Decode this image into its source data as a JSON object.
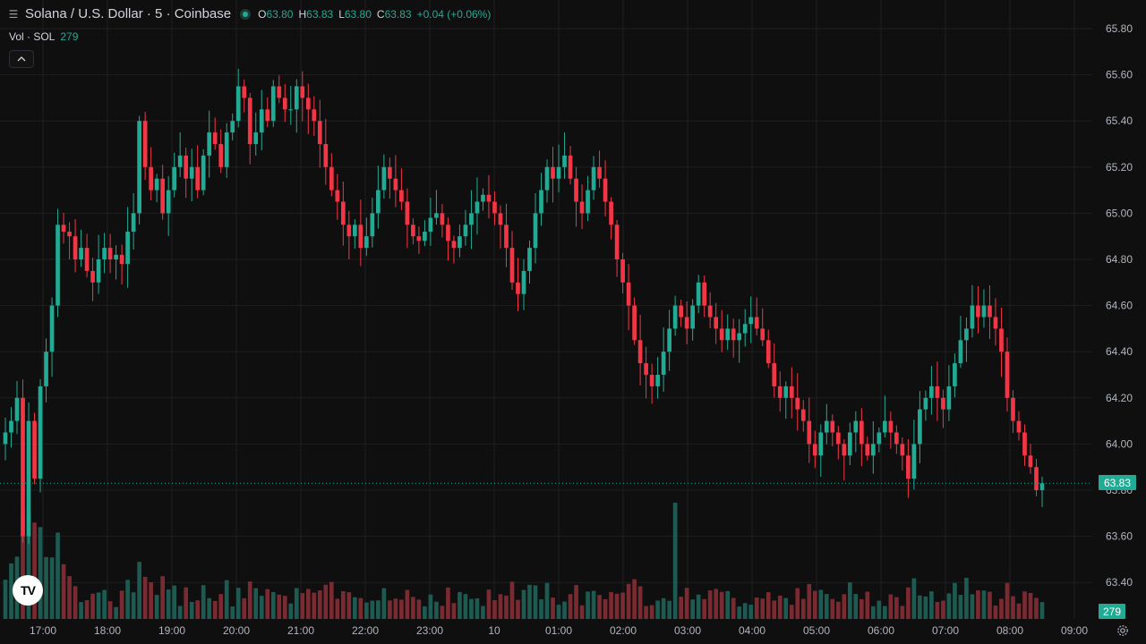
{
  "header": {
    "symbol_title": "Solana / U.S. Dollar · 5 · Coinbase",
    "ohlc": {
      "o_label": "O",
      "o": "63.80",
      "h_label": "H",
      "h": "63.83",
      "l_label": "L",
      "l": "63.80",
      "c_label": "C",
      "c": "63.83",
      "change": "+0.04 (+0.06%)"
    }
  },
  "volume_legend": {
    "label": "Vol · SOL",
    "value": "279"
  },
  "collapse_icon": "chevron-up-icon",
  "logo": {
    "text": "TV"
  },
  "last_price_tag": "63.83",
  "last_volume_tag": "279",
  "colors": {
    "up": "#22ab94",
    "down": "#f23645",
    "background": "#0f0f0f",
    "grid": "#1f1f1f",
    "text": "#d1d4dc"
  },
  "chart_data": {
    "type": "candlestick",
    "y_ticks": [
      "65.80",
      "65.60",
      "65.40",
      "65.20",
      "65.00",
      "64.80",
      "64.60",
      "64.40",
      "64.20",
      "64.00",
      "63.80",
      "63.60",
      "63.40"
    ],
    "ylim": [
      63.3,
      65.85
    ],
    "x_ticks": [
      "17:00",
      "18:00",
      "19:00",
      "20:00",
      "21:00",
      "22:00",
      "23:00",
      "10",
      "01:00",
      "02:00",
      "03:00",
      "04:00",
      "05:00",
      "06:00",
      "07:00",
      "08:00",
      "09:00"
    ],
    "close": [
      64.05,
      64.1,
      64.2,
      63.6,
      64.1,
      63.85,
      64.25,
      64.4,
      64.6,
      64.95,
      64.92,
      64.9,
      64.8,
      64.85,
      64.75,
      64.7,
      64.8,
      64.85,
      64.8,
      64.82,
      64.78,
      64.92,
      65.0,
      65.4,
      65.2,
      65.1,
      65.15,
      65.0,
      65.1,
      65.2,
      65.25,
      65.15,
      65.2,
      65.1,
      65.25,
      65.35,
      65.3,
      65.2,
      65.35,
      65.4,
      65.55,
      65.5,
      65.3,
      65.35,
      65.45,
      65.4,
      65.55,
      65.5,
      65.45,
      65.45,
      65.55,
      65.5,
      65.45,
      65.4,
      65.3,
      65.2,
      65.1,
      65.05,
      64.95,
      64.9,
      64.95,
      64.85,
      64.9,
      65.0,
      65.1,
      65.2,
      65.15,
      65.1,
      65.05,
      64.95,
      64.9,
      64.88,
      64.92,
      64.98,
      65.0,
      64.95,
      64.88,
      64.85,
      64.9,
      64.95,
      65.0,
      65.05,
      65.08,
      65.05,
      65.0,
      64.95,
      64.85,
      64.7,
      64.65,
      64.75,
      64.85,
      65.0,
      65.1,
      65.2,
      65.15,
      65.2,
      65.25,
      65.15,
      65.05,
      65.0,
      65.1,
      65.2,
      65.15,
      65.05,
      64.95,
      64.8,
      64.7,
      64.6,
      64.45,
      64.35,
      64.3,
      64.25,
      64.3,
      64.4,
      64.5,
      64.6,
      64.55,
      64.5,
      64.6,
      64.7,
      64.6,
      64.55,
      64.5,
      64.45,
      64.5,
      64.45,
      64.48,
      64.52,
      64.55,
      64.5,
      64.45,
      64.35,
      64.25,
      64.2,
      64.25,
      64.2,
      64.15,
      64.1,
      64.0,
      63.95,
      64.05,
      64.1,
      64.05,
      64.0,
      63.95,
      64.05,
      64.1,
      64.0,
      63.95,
      64.0,
      64.05,
      64.1,
      64.05,
      64.0,
      63.95,
      63.85,
      64.0,
      64.15,
      64.2,
      64.25,
      64.2,
      64.15,
      64.25,
      64.35,
      64.45,
      64.5,
      64.6,
      64.55,
      64.6,
      64.55,
      64.5,
      64.4,
      64.2,
      64.1,
      64.05,
      63.95,
      63.9,
      63.8,
      63.83
    ],
    "volume_ylim": [
      0,
      1300
    ]
  }
}
